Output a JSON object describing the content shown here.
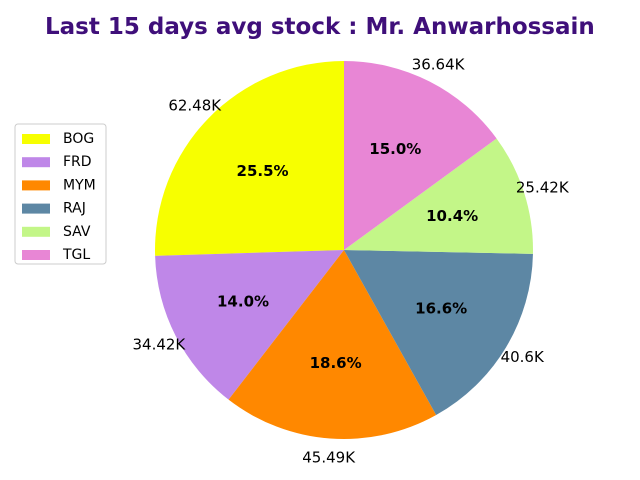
{
  "chart_data": {
    "type": "pie",
    "title": "Last 15 days avg stock : Mr. Anwarhossain",
    "categories": [
      "BOG",
      "FRD",
      "MYM",
      "RAJ",
      "SAV",
      "TGL"
    ],
    "values": [
      62.48,
      34.42,
      45.49,
      40.6,
      25.42,
      36.64
    ],
    "value_labels": [
      "62.48K",
      "34.42K",
      "45.49K",
      "40.6K",
      "25.42K",
      "36.64K"
    ],
    "percent_labels": [
      "25.5%",
      "14.0%",
      "18.6%",
      "16.6%",
      "10.4%",
      "15.0%"
    ],
    "colors": [
      "#f7ff00",
      "#bf87e8",
      "#ff8800",
      "#5d87a4",
      "#c3f688",
      "#e886d5"
    ],
    "start_angle_deg": 90,
    "direction": "counterclockwise",
    "legend_position": "left"
  }
}
